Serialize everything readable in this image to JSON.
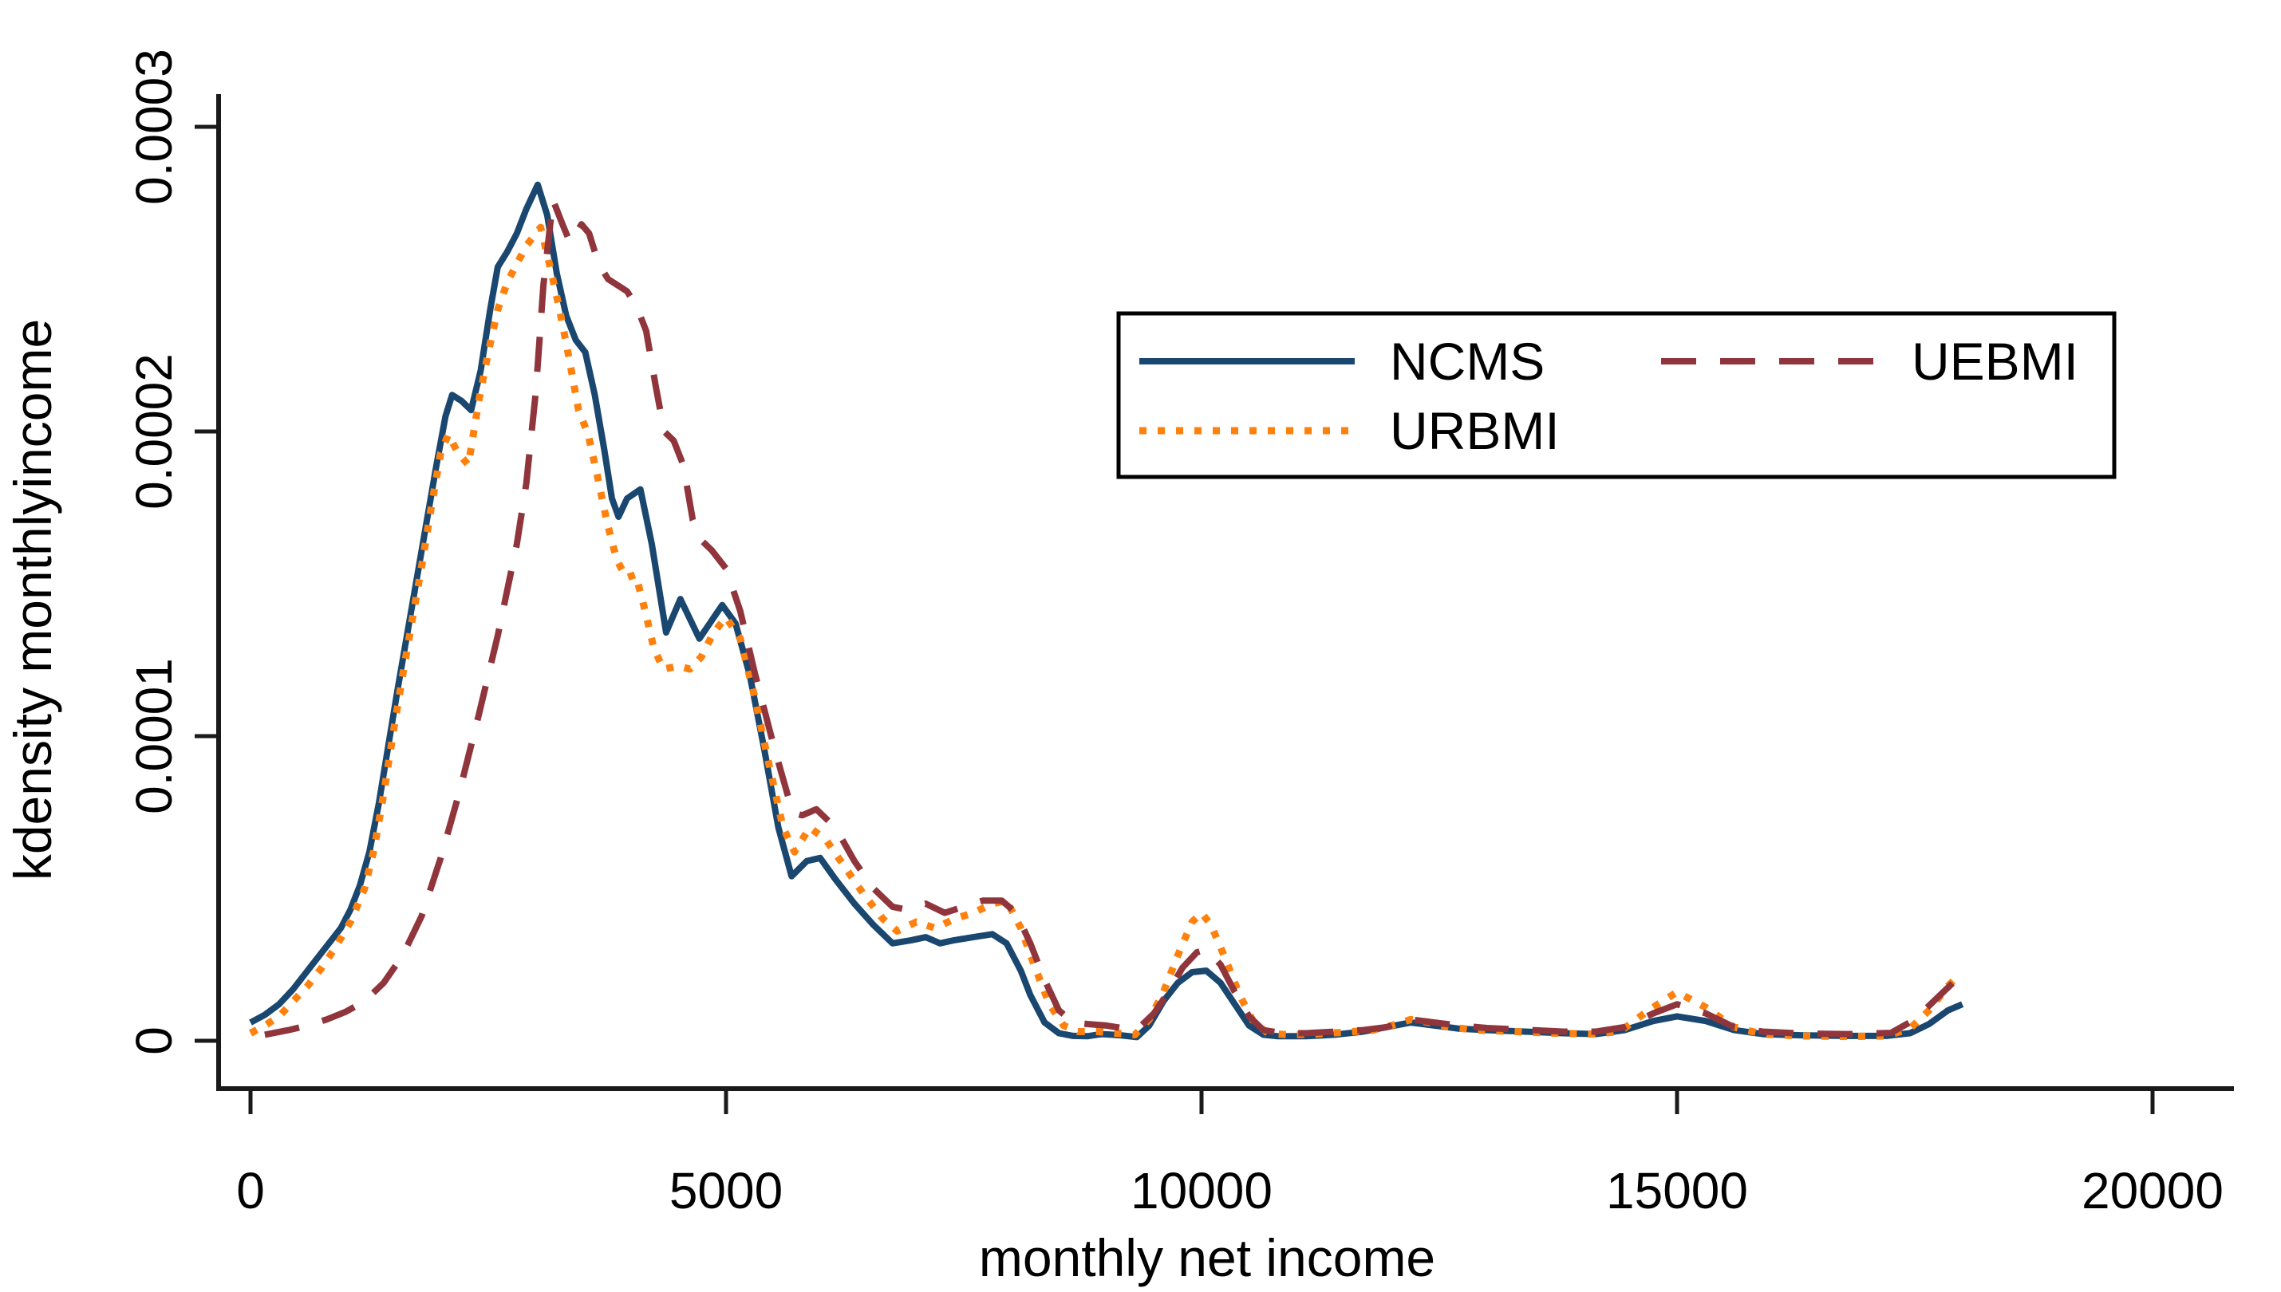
{
  "chart_data": {
    "type": "line",
    "title": "",
    "xlabel": "monthly net income",
    "ylabel": "kdensity monthlyincome",
    "xlim": [
      0,
      20000
    ],
    "ylim": [
      0,
      0.0003
    ],
    "grid": false,
    "x_ticks": {
      "values": [
        0,
        5000,
        10000,
        15000,
        20000
      ],
      "labels": [
        "0",
        "5000",
        "10000",
        "15000",
        "20000"
      ]
    },
    "y_ticks": {
      "values": [
        0,
        0.0001,
        0.0002,
        0.0003
      ],
      "labels": [
        "0",
        "0.0001",
        "0.0002",
        "0.0003"
      ]
    },
    "legend": {
      "position": "inside-top-right",
      "border_color": "#000000",
      "items": [
        {
          "label": "NCMS",
          "series": "ncms"
        },
        {
          "label": "UEBMI",
          "series": "uebmi"
        },
        {
          "label": "URBMI",
          "series": "urbmi"
        }
      ]
    },
    "y_unit_multiplier": 1e-06,
    "series": [
      {
        "name": "NCMS",
        "key": "ncms",
        "color": "#1a476f",
        "line_style": "solid",
        "points": [
          [
            0,
            6
          ],
          [
            150,
            8.5
          ],
          [
            300,
            12
          ],
          [
            450,
            17
          ],
          [
            600,
            23
          ],
          [
            750,
            29
          ],
          [
            850,
            33
          ],
          [
            950,
            37
          ],
          [
            1050,
            43
          ],
          [
            1150,
            51
          ],
          [
            1250,
            62
          ],
          [
            1350,
            78
          ],
          [
            1450,
            97
          ],
          [
            1550,
            116
          ],
          [
            1650,
            134
          ],
          [
            1750,
            152
          ],
          [
            1850,
            170
          ],
          [
            1950,
            188
          ],
          [
            2050,
            205
          ],
          [
            2120,
            212
          ],
          [
            2220,
            210
          ],
          [
            2320,
            207
          ],
          [
            2420,
            220
          ],
          [
            2520,
            240
          ],
          [
            2600,
            254
          ],
          [
            2700,
            259
          ],
          [
            2800,
            265
          ],
          [
            2900,
            273
          ],
          [
            3020,
            281
          ],
          [
            3120,
            271
          ],
          [
            3220,
            252
          ],
          [
            3320,
            238
          ],
          [
            3420,
            230
          ],
          [
            3520,
            226
          ],
          [
            3620,
            212
          ],
          [
            3720,
            194
          ],
          [
            3800,
            178
          ],
          [
            3870,
            172
          ],
          [
            3960,
            178
          ],
          [
            4100,
            181
          ],
          [
            4220,
            163
          ],
          [
            4370,
            134
          ],
          [
            4520,
            145
          ],
          [
            4720,
            132
          ],
          [
            4960,
            143
          ],
          [
            5100,
            137
          ],
          [
            5250,
            120
          ],
          [
            5400,
            96
          ],
          [
            5550,
            70
          ],
          [
            5690,
            54
          ],
          [
            5850,
            59
          ],
          [
            5990,
            60
          ],
          [
            6150,
            53
          ],
          [
            6350,
            45
          ],
          [
            6550,
            38
          ],
          [
            6750,
            32
          ],
          [
            6950,
            33
          ],
          [
            7100,
            34
          ],
          [
            7250,
            32
          ],
          [
            7400,
            33
          ],
          [
            7600,
            34
          ],
          [
            7800,
            35
          ],
          [
            7950,
            32
          ],
          [
            8100,
            23
          ],
          [
            8200,
            15
          ],
          [
            8350,
            6
          ],
          [
            8500,
            2.5
          ],
          [
            8650,
            1.6
          ],
          [
            8800,
            1.5
          ],
          [
            8950,
            2.2
          ],
          [
            9150,
            1.8
          ],
          [
            9320,
            1.2
          ],
          [
            9450,
            5
          ],
          [
            9600,
            13
          ],
          [
            9750,
            19
          ],
          [
            9900,
            22.5
          ],
          [
            10050,
            23
          ],
          [
            10200,
            19
          ],
          [
            10350,
            12
          ],
          [
            10500,
            5
          ],
          [
            10650,
            2
          ],
          [
            10800,
            1.5
          ],
          [
            11100,
            1.5
          ],
          [
            11400,
            2
          ],
          [
            11700,
            3
          ],
          [
            11950,
            4.5
          ],
          [
            12200,
            6
          ],
          [
            12450,
            5
          ],
          [
            12700,
            4
          ],
          [
            13000,
            3.5
          ],
          [
            13400,
            3
          ],
          [
            13800,
            2.5
          ],
          [
            14150,
            2.2
          ],
          [
            14450,
            3.5
          ],
          [
            14750,
            6.5
          ],
          [
            15000,
            8
          ],
          [
            15300,
            6.5
          ],
          [
            15600,
            3.5
          ],
          [
            15900,
            2.2
          ],
          [
            16300,
            1.8
          ],
          [
            16800,
            1.6
          ],
          [
            17200,
            1.6
          ],
          [
            17450,
            2.5
          ],
          [
            17650,
            5.5
          ],
          [
            17850,
            10
          ],
          [
            18000,
            12
          ]
        ]
      },
      {
        "name": "URBMI",
        "key": "urbmi",
        "color": "#ff810d",
        "line_style": "dot",
        "points": [
          [
            0,
            2.5
          ],
          [
            150,
            5
          ],
          [
            300,
            8
          ],
          [
            450,
            13
          ],
          [
            600,
            18
          ],
          [
            750,
            24
          ],
          [
            900,
            31
          ],
          [
            1050,
            39
          ],
          [
            1200,
            50
          ],
          [
            1300,
            63
          ],
          [
            1400,
            81
          ],
          [
            1500,
            101
          ],
          [
            1600,
            120
          ],
          [
            1700,
            138
          ],
          [
            1800,
            156
          ],
          [
            1900,
            175
          ],
          [
            2000,
            193
          ],
          [
            2080,
            199
          ],
          [
            2180,
            193
          ],
          [
            2290,
            189
          ],
          [
            2400,
            210
          ],
          [
            2500,
            226
          ],
          [
            2600,
            240
          ],
          [
            2700,
            249
          ],
          [
            2800,
            255
          ],
          [
            2900,
            261
          ],
          [
            3050,
            267
          ],
          [
            3150,
            254
          ],
          [
            3250,
            240
          ],
          [
            3350,
            224
          ],
          [
            3450,
            207
          ],
          [
            3550,
            199
          ],
          [
            3650,
            185
          ],
          [
            3750,
            170
          ],
          [
            3850,
            158
          ],
          [
            3950,
            152
          ],
          [
            4050,
            153
          ],
          [
            4150,
            141
          ],
          [
            4240,
            129
          ],
          [
            4340,
            122
          ],
          [
            4500,
            123
          ],
          [
            4620,
            122
          ],
          [
            4740,
            126
          ],
          [
            4870,
            134
          ],
          [
            5000,
            139
          ],
          [
            5150,
            132
          ],
          [
            5300,
            113
          ],
          [
            5450,
            91
          ],
          [
            5600,
            70
          ],
          [
            5720,
            62
          ],
          [
            5880,
            70
          ],
          [
            6050,
            66
          ],
          [
            6250,
            57
          ],
          [
            6450,
            48
          ],
          [
            6650,
            40
          ],
          [
            6800,
            36
          ],
          [
            7000,
            39
          ],
          [
            7200,
            37
          ],
          [
            7400,
            40
          ],
          [
            7600,
            42
          ],
          [
            7800,
            45
          ],
          [
            7950,
            46
          ],
          [
            8100,
            37
          ],
          [
            8250,
            24
          ],
          [
            8400,
            12
          ],
          [
            8550,
            5
          ],
          [
            8700,
            3
          ],
          [
            8900,
            3
          ],
          [
            9100,
            2.5
          ],
          [
            9300,
            2
          ],
          [
            9450,
            7
          ],
          [
            9600,
            16
          ],
          [
            9750,
            28
          ],
          [
            9900,
            39
          ],
          [
            10000,
            42
          ],
          [
            10100,
            38
          ],
          [
            10250,
            27
          ],
          [
            10400,
            15
          ],
          [
            10550,
            6
          ],
          [
            10700,
            2.5
          ],
          [
            10900,
            2
          ],
          [
            11200,
            2.2
          ],
          [
            11500,
            2.8
          ],
          [
            11800,
            3.5
          ],
          [
            12000,
            5
          ],
          [
            12200,
            7
          ],
          [
            12400,
            6
          ],
          [
            12600,
            4.5
          ],
          [
            12900,
            3.5
          ],
          [
            13300,
            3
          ],
          [
            13700,
            2.5
          ],
          [
            14100,
            2.2
          ],
          [
            14400,
            3
          ],
          [
            14700,
            10
          ],
          [
            15000,
            16
          ],
          [
            15300,
            11
          ],
          [
            15600,
            4.5
          ],
          [
            15900,
            2.2
          ],
          [
            16300,
            1.6
          ],
          [
            16800,
            1.4
          ],
          [
            17200,
            1.6
          ],
          [
            17450,
            4
          ],
          [
            17650,
            10
          ],
          [
            17850,
            18
          ],
          [
            17980,
            22
          ]
        ]
      },
      {
        "name": "UEBMI",
        "key": "uebmi",
        "color": "#90353b",
        "line_style": "long-dash",
        "points": [
          [
            150,
            2
          ],
          [
            400,
            3.5
          ],
          [
            600,
            5
          ],
          [
            800,
            7
          ],
          [
            1000,
            9.5
          ],
          [
            1200,
            13
          ],
          [
            1400,
            19
          ],
          [
            1600,
            28
          ],
          [
            1800,
            41
          ],
          [
            2000,
            60
          ],
          [
            2200,
            82
          ],
          [
            2400,
            107
          ],
          [
            2600,
            133
          ],
          [
            2800,
            163
          ],
          [
            2900,
            183
          ],
          [
            3000,
            213
          ],
          [
            3080,
            248
          ],
          [
            3180,
            276
          ],
          [
            3280,
            268
          ],
          [
            3360,
            262
          ],
          [
            3480,
            268
          ],
          [
            3560,
            265
          ],
          [
            3660,
            255
          ],
          [
            3760,
            250
          ],
          [
            3860,
            248
          ],
          [
            3960,
            246
          ],
          [
            4060,
            241
          ],
          [
            4160,
            233
          ],
          [
            4260,
            215
          ],
          [
            4350,
            200
          ],
          [
            4450,
            197
          ],
          [
            4550,
            189
          ],
          [
            4650,
            171
          ],
          [
            4750,
            164
          ],
          [
            4850,
            161
          ],
          [
            5000,
            155
          ],
          [
            5150,
            141
          ],
          [
            5300,
            121
          ],
          [
            5500,
            97
          ],
          [
            5700,
            75
          ],
          [
            5800,
            74
          ],
          [
            5950,
            76
          ],
          [
            6150,
            70
          ],
          [
            6350,
            59
          ],
          [
            6550,
            50
          ],
          [
            6750,
            44
          ],
          [
            6900,
            43
          ],
          [
            7100,
            45
          ],
          [
            7300,
            42
          ],
          [
            7500,
            44
          ],
          [
            7700,
            46
          ],
          [
            7900,
            46
          ],
          [
            8050,
            42
          ],
          [
            8200,
            32
          ],
          [
            8350,
            20
          ],
          [
            8500,
            10
          ],
          [
            8650,
            6
          ],
          [
            8800,
            5.5
          ],
          [
            9000,
            5
          ],
          [
            9200,
            4
          ],
          [
            9350,
            4.5
          ],
          [
            9500,
            9
          ],
          [
            9650,
            16
          ],
          [
            9800,
            24
          ],
          [
            9950,
            29
          ],
          [
            10050,
            30
          ],
          [
            10200,
            25
          ],
          [
            10350,
            16
          ],
          [
            10500,
            8
          ],
          [
            10650,
            3.5
          ],
          [
            10850,
            2.5
          ],
          [
            11100,
            2.5
          ],
          [
            11400,
            3
          ],
          [
            11700,
            3.5
          ],
          [
            11950,
            4.5
          ],
          [
            12200,
            7
          ],
          [
            12450,
            6
          ],
          [
            12700,
            5
          ],
          [
            13000,
            4.2
          ],
          [
            13400,
            3.6
          ],
          [
            13800,
            3
          ],
          [
            14150,
            3
          ],
          [
            14450,
            4.5
          ],
          [
            14750,
            9
          ],
          [
            15000,
            12
          ],
          [
            15300,
            9
          ],
          [
            15600,
            4.5
          ],
          [
            15900,
            3
          ],
          [
            16300,
            2.4
          ],
          [
            16800,
            2.2
          ],
          [
            17250,
            2.6
          ],
          [
            17500,
            7
          ],
          [
            17700,
            13
          ],
          [
            17900,
            19
          ],
          [
            18000,
            20
          ]
        ]
      }
    ],
    "axis_color": "#1a1a1a"
  }
}
